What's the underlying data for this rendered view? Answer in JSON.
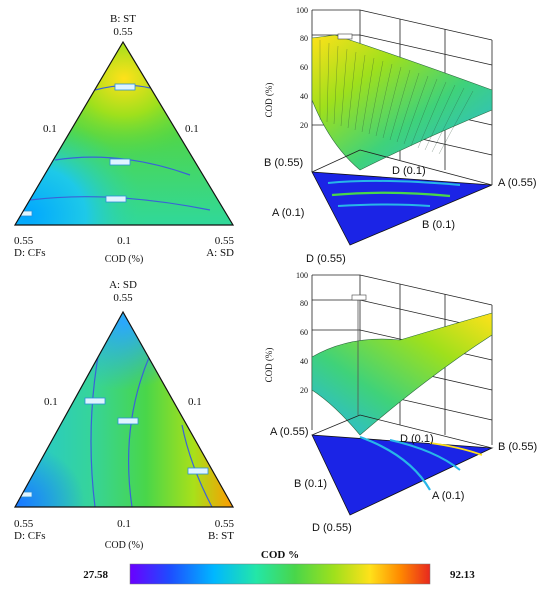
{
  "colors": {
    "scale": [
      "#6a00ff",
      "#1f4bff",
      "#00b7ff",
      "#23e6a8",
      "#49d64a",
      "#9fe01c",
      "#ffe11a",
      "#ff8a00",
      "#e8281e"
    ],
    "contour_line": "#3a62d8",
    "label_box": "#2a8fd8",
    "grid": "#222222",
    "floor_fill": "#1b24e6"
  },
  "chart_data": [
    {
      "type": "ternary_contour",
      "panel": "top-left",
      "top_vertex_name": "B: ST",
      "top_vertex_value": "0.55",
      "bottom_left_value": "0.55",
      "bottom_left_name": "D: CFs",
      "bottom_right_value": "0.55",
      "bottom_right_name": "A: SD",
      "left_mid_tick": "0.1",
      "right_mid_tick": "0.1",
      "bottom_mid_tick": "0.1",
      "xlabel": "COD (%)",
      "color_range": [
        27.58,
        92.13
      ]
    },
    {
      "type": "surface_3d",
      "panel": "top-right",
      "ylabel": "COD (%)",
      "z_ticks": [
        "100",
        "80",
        "60",
        "40",
        "20"
      ],
      "zlim": [
        20,
        100
      ],
      "axis_labels": [
        "B (0.55)",
        "D (0.1)",
        "A (0.55)",
        "A (0.1)",
        "B (0.1)",
        "D (0.55)"
      ]
    },
    {
      "type": "ternary_contour",
      "panel": "bottom-left",
      "top_vertex_name": "A: SD",
      "top_vertex_value": "0.55",
      "bottom_left_value": "0.55",
      "bottom_left_name": "D: CFs",
      "bottom_right_value": "0.55",
      "bottom_right_name": "B: ST",
      "left_mid_tick": "0.1",
      "right_mid_tick": "0.1",
      "bottom_mid_tick": "0.1",
      "xlabel": "COD (%)",
      "color_range": [
        27.58,
        92.13
      ]
    },
    {
      "type": "surface_3d",
      "panel": "bottom-right",
      "ylabel": "COD (%)",
      "z_ticks": [
        "100",
        "80",
        "60",
        "40",
        "20"
      ],
      "zlim": [
        20,
        100
      ],
      "axis_labels": [
        "A (0.55)",
        "D (0.1)",
        "B (0.55)",
        "B (0.1)",
        "A (0.1)",
        "D (0.55)"
      ]
    },
    {
      "type": "colorbar",
      "title": "COD %",
      "min_label": "27.58",
      "max_label": "92.13",
      "range": [
        27.58,
        92.13
      ]
    }
  ]
}
